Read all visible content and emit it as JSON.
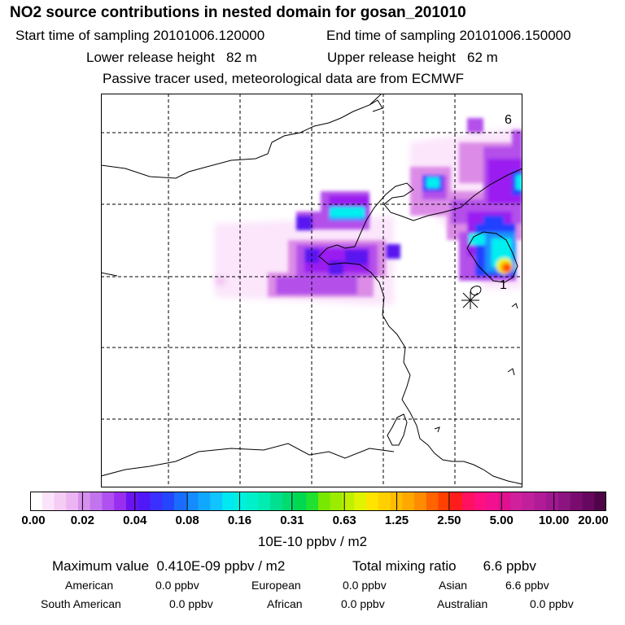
{
  "header": {
    "title": "NO2 source contributions in nested domain for gosan_201010",
    "start_time": "Start time of sampling 20101006.120000",
    "end_time": "End time of sampling 20101006.150000",
    "lower_height": "Lower release height   82 m",
    "upper_height": "Upper release height   62 m",
    "note": "Passive tracer used, meteorological data are from ECMWF"
  },
  "map": {
    "labels": {
      "start": "6",
      "end": "1"
    },
    "colors": {
      "lightest": "#fbe6fb",
      "lightpink": "#f0bcf0",
      "pink": "#dc8ce6",
      "violet": "#b450ea",
      "purple": "#9b1ff0",
      "indigo": "#5a14f0",
      "blue": "#2040ff",
      "sky": "#1a90ff",
      "cyan": "#00f0f0",
      "yellow": "#f2f200",
      "orange": "#ff9a00",
      "red": "#ff2000"
    }
  },
  "colorbar": {
    "ticks": [
      "0.00",
      "0.02",
      "0.04",
      "0.08",
      "0.16",
      "0.31",
      "0.63",
      "1.25",
      "2.50",
      "5.00",
      "10.00",
      "20.00"
    ],
    "colors": [
      "#ffffff",
      "#fbe4fb",
      "#f4ccf4",
      "#ecb4f2",
      "#d690ee",
      "#c274ee",
      "#b050f0",
      "#9a2ef0",
      "#6a14f0",
      "#5018f8",
      "#3a30ff",
      "#2446ff",
      "#1a6cff",
      "#148cff",
      "#10a8ff",
      "#10c4ff",
      "#00e8f0",
      "#00f0e0",
      "#00f0cc",
      "#00ecb0",
      "#00e090",
      "#00dc70",
      "#00d850",
      "#20e030",
      "#78e800",
      "#9cec00",
      "#c0f000",
      "#e0f400",
      "#ffe400",
      "#ffd000",
      "#ffbc00",
      "#ffa800",
      "#ff8c00",
      "#ff6400",
      "#ff4000",
      "#ff1c1c",
      "#ff1060",
      "#ff1080",
      "#f01090",
      "#e01090",
      "#d0209c",
      "#c0209c",
      "#b01c98",
      "#a01890",
      "#8c1480",
      "#7a0c70",
      "#660860",
      "#500448"
    ],
    "units": "10E-10 ppbv / m2"
  },
  "stats": {
    "max_value": "Maximum value  0.410E-09 ppbv / m2",
    "total_mixing": "Total mixing ratio       6.6 ppbv",
    "regions": [
      {
        "name": "American",
        "value": "0.0 ppbv"
      },
      {
        "name": "European",
        "value": "0.0 ppbv"
      },
      {
        "name": "Asian",
        "value": "6.6 ppbv"
      },
      {
        "name": "South American",
        "value": "0.0 ppbv"
      },
      {
        "name": "African",
        "value": "0.0 ppbv"
      },
      {
        "name": "Australian",
        "value": "0.0 ppbv"
      }
    ]
  }
}
